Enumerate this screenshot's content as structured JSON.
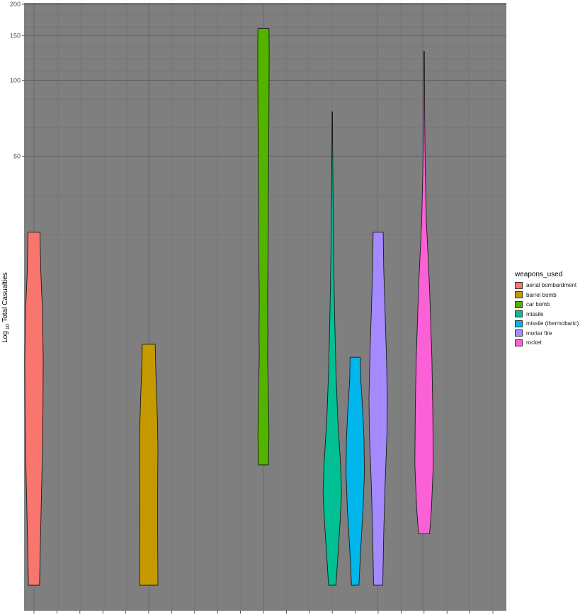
{
  "chart_data": {
    "type": "violin",
    "title": "",
    "xlabel": "",
    "ylabel_prefix": "Log",
    "ylabel_sub": "10",
    "ylabel_suffix": " Total  Casualties",
    "y_scale": "log10",
    "ylim": [
      1,
      200
    ],
    "y_ticks": [
      200,
      150,
      100,
      50
    ],
    "legend_title": "weapons_used",
    "legend_position": "right",
    "grid": true,
    "panel_background": "#7f7f7f",
    "series": [
      {
        "name": "aerial bombardment",
        "color": "#F8766D",
        "x_slot": 0,
        "min": 1,
        "max": 25,
        "density": [
          [
            1,
            0.6
          ],
          [
            1.5,
            0.7
          ],
          [
            2.2,
            0.8
          ],
          [
            3.2,
            0.9
          ],
          [
            5,
            0.98
          ],
          [
            8,
            1.0
          ],
          [
            12,
            0.92
          ],
          [
            17,
            0.75
          ],
          [
            22,
            0.68
          ],
          [
            25,
            0.65
          ]
        ]
      },
      {
        "name": "barrel bomb",
        "color": "#C49A00",
        "x_slot": 5,
        "min": 1,
        "max": 9,
        "density": [
          [
            1,
            1.0
          ],
          [
            1.4,
            0.98
          ],
          [
            1.9,
            0.96
          ],
          [
            2.8,
            0.98
          ],
          [
            3.5,
            1.0
          ],
          [
            4.5,
            0.95
          ],
          [
            5.5,
            0.88
          ],
          [
            6.5,
            0.8
          ],
          [
            7.5,
            0.75
          ],
          [
            9,
            0.7
          ]
        ]
      },
      {
        "name": "car bomb",
        "color": "#53B400",
        "x_slot": 10,
        "min": 3,
        "max": 160,
        "density": [
          [
            3,
            0.55
          ],
          [
            4,
            0.6
          ],
          [
            6,
            0.52
          ],
          [
            8,
            0.45
          ],
          [
            10,
            0.48
          ],
          [
            14,
            0.45
          ],
          [
            20,
            0.5
          ],
          [
            40,
            0.55
          ],
          [
            80,
            0.6
          ],
          [
            130,
            0.62
          ],
          [
            160,
            0.6
          ]
        ]
      },
      {
        "name": "missile",
        "color": "#00C094",
        "x_slot": 13,
        "min": 1,
        "max": 75,
        "density": [
          [
            1,
            0.4
          ],
          [
            1.3,
            0.6
          ],
          [
            1.8,
            0.85
          ],
          [
            2.3,
            1.0
          ],
          [
            3,
            0.9
          ],
          [
            4.5,
            0.6
          ],
          [
            7,
            0.4
          ],
          [
            12,
            0.25
          ],
          [
            20,
            0.15
          ],
          [
            35,
            0.08
          ],
          [
            55,
            0.04
          ],
          [
            75,
            0.02
          ]
        ]
      },
      {
        "name": "missile (thermobaric)",
        "color": "#00B6EB",
        "x_slot": 14,
        "min": 1,
        "max": 8,
        "density": [
          [
            1,
            0.4
          ],
          [
            1.4,
            0.6
          ],
          [
            2,
            0.85
          ],
          [
            2.8,
            1.0
          ],
          [
            3.8,
            0.95
          ],
          [
            5,
            0.8
          ],
          [
            6.5,
            0.6
          ],
          [
            8,
            0.55
          ]
        ]
      },
      {
        "name": "mortar fire",
        "color": "#A58AFF",
        "x_slot": 15,
        "min": 1,
        "max": 25,
        "density": [
          [
            1,
            0.5
          ],
          [
            1.6,
            0.6
          ],
          [
            2.5,
            0.75
          ],
          [
            4,
            0.95
          ],
          [
            5.5,
            1.0
          ],
          [
            8,
            0.9
          ],
          [
            12,
            0.75
          ],
          [
            18,
            0.6
          ],
          [
            25,
            0.55
          ]
        ]
      },
      {
        "name": "rocket",
        "color": "#FB61D7",
        "x_slot": 17,
        "min": 1.6,
        "max": 130,
        "density": [
          [
            1.6,
            0.6
          ],
          [
            2,
            0.8
          ],
          [
            3,
            1.0
          ],
          [
            5,
            0.95
          ],
          [
            8,
            0.85
          ],
          [
            15,
            0.6
          ],
          [
            28,
            0.25
          ],
          [
            45,
            0.12
          ],
          [
            70,
            0.07
          ],
          [
            100,
            0.05
          ],
          [
            130,
            0.04
          ]
        ]
      }
    ]
  }
}
